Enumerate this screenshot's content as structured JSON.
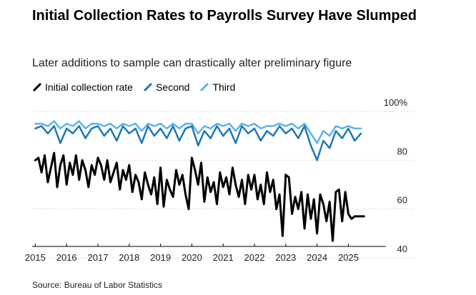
{
  "chart_data": {
    "type": "line",
    "title": "Initial Collection Rates to Payrolls Survey Have Slumped",
    "subtitle": "Later additions to sample can drastically alter preliminary figure",
    "source": "Source: Bureau of Labor Statistics",
    "xlabel": "",
    "ylabel": "",
    "xlim": [
      2014.9,
      2026.2
    ],
    "ylim": [
      40,
      100
    ],
    "x_ticks": [
      2015,
      2016,
      2017,
      2018,
      2019,
      2020,
      2021,
      2022,
      2023,
      2024,
      2025
    ],
    "x_tick_labels": [
      "2015",
      "2016",
      "2017",
      "2018",
      "2019",
      "2020",
      "2021",
      "2022",
      "2023",
      "2024",
      "2025"
    ],
    "y_ticks": [
      40,
      60,
      80,
      100
    ],
    "y_tick_labels": [
      "40",
      "60",
      "80",
      "100%"
    ],
    "grid": "horizontal dotted",
    "legend_position": "top-left",
    "colors": {
      "initial": "#000000",
      "second": "#1f77b4",
      "third": "#5ab4ec",
      "grid": "#bbbbbb",
      "axis": "#000000"
    },
    "series": [
      {
        "name": "Initial collection rate",
        "key": "initial",
        "x": [
          2015.0,
          2015.1,
          2015.2,
          2015.3,
          2015.4,
          2015.5,
          2015.6,
          2015.7,
          2015.8,
          2015.9,
          2016.0,
          2016.1,
          2016.2,
          2016.3,
          2016.4,
          2016.5,
          2016.6,
          2016.7,
          2016.8,
          2016.9,
          2017.0,
          2017.1,
          2017.2,
          2017.3,
          2017.4,
          2017.5,
          2017.6,
          2017.7,
          2017.8,
          2017.9,
          2018.0,
          2018.1,
          2018.2,
          2018.3,
          2018.4,
          2018.5,
          2018.6,
          2018.7,
          2018.8,
          2018.9,
          2019.0,
          2019.1,
          2019.2,
          2019.3,
          2019.4,
          2019.5,
          2019.6,
          2019.7,
          2019.8,
          2019.9,
          2020.0,
          2020.1,
          2020.2,
          2020.3,
          2020.4,
          2020.5,
          2020.6,
          2020.7,
          2020.8,
          2020.9,
          2021.0,
          2021.1,
          2021.2,
          2021.3,
          2021.4,
          2021.5,
          2021.6,
          2021.7,
          2021.8,
          2021.9,
          2022.0,
          2022.1,
          2022.2,
          2022.3,
          2022.4,
          2022.5,
          2022.6,
          2022.7,
          2022.8,
          2022.9,
          2023.0,
          2023.1,
          2023.2,
          2023.3,
          2023.4,
          2023.5,
          2023.6,
          2023.7,
          2023.8,
          2023.9,
          2024.0,
          2024.1,
          2024.2,
          2024.3,
          2024.4,
          2024.5,
          2024.6,
          2024.7,
          2024.8,
          2024.9,
          2025.0,
          2025.1,
          2025.2,
          2025.3,
          2025.4,
          2025.5
        ],
        "values": [
          80,
          81,
          75,
          82,
          71,
          77,
          83,
          69,
          78,
          82,
          70,
          79,
          74,
          82,
          72,
          80,
          76,
          69,
          78,
          74,
          81,
          78,
          72,
          80,
          71,
          75,
          79,
          68,
          76,
          72,
          78,
          67,
          74,
          71,
          64,
          75,
          70,
          66,
          73,
          62,
          77,
          61,
          72,
          68,
          65,
          76,
          70,
          74,
          66,
          60,
          81,
          76,
          70,
          79,
          63,
          73,
          67,
          71,
          62,
          75,
          69,
          73,
          66,
          77,
          70,
          65,
          72,
          62,
          74,
          68,
          74,
          64,
          70,
          62,
          75,
          67,
          72,
          60,
          66,
          49,
          74,
          73,
          58,
          65,
          60,
          67,
          52,
          66,
          56,
          64,
          50,
          66,
          62,
          55,
          63,
          47,
          67,
          68,
          55,
          67,
          58,
          56,
          57,
          57,
          57,
          57
        ],
        "line_width": 3
      },
      {
        "name": "Second",
        "key": "second",
        "x": [
          2015.0,
          2015.2,
          2015.4,
          2015.6,
          2015.8,
          2016.0,
          2016.2,
          2016.4,
          2016.6,
          2016.8,
          2017.0,
          2017.2,
          2017.4,
          2017.6,
          2017.8,
          2018.0,
          2018.2,
          2018.4,
          2018.6,
          2018.8,
          2019.0,
          2019.2,
          2019.4,
          2019.6,
          2019.8,
          2020.0,
          2020.2,
          2020.4,
          2020.6,
          2020.8,
          2021.0,
          2021.2,
          2021.4,
          2021.6,
          2021.8,
          2022.0,
          2022.2,
          2022.4,
          2022.6,
          2022.8,
          2023.0,
          2023.2,
          2023.4,
          2023.6,
          2023.8,
          2024.0,
          2024.2,
          2024.4,
          2024.6,
          2024.8,
          2025.0,
          2025.2,
          2025.4
        ],
        "values": [
          93,
          94,
          91,
          94,
          87,
          93,
          91,
          94,
          89,
          93,
          94,
          90,
          93,
          88,
          94,
          91,
          93,
          87,
          94,
          90,
          93,
          89,
          94,
          88,
          93,
          94,
          86,
          92,
          89,
          94,
          90,
          93,
          87,
          94,
          91,
          93,
          88,
          92,
          90,
          94,
          91,
          93,
          89,
          94,
          86,
          80,
          88,
          85,
          92,
          89,
          93,
          88,
          91
        ],
        "line_width": 2.5
      },
      {
        "name": "Third",
        "key": "third",
        "x": [
          2015.0,
          2015.2,
          2015.4,
          2015.6,
          2015.8,
          2016.0,
          2016.2,
          2016.4,
          2016.6,
          2016.8,
          2017.0,
          2017.2,
          2017.4,
          2017.6,
          2017.8,
          2018.0,
          2018.2,
          2018.4,
          2018.6,
          2018.8,
          2019.0,
          2019.2,
          2019.4,
          2019.6,
          2019.8,
          2020.0,
          2020.2,
          2020.4,
          2020.6,
          2020.8,
          2021.0,
          2021.2,
          2021.4,
          2021.6,
          2021.8,
          2022.0,
          2022.2,
          2022.4,
          2022.6,
          2022.8,
          2023.0,
          2023.2,
          2023.4,
          2023.6,
          2023.8,
          2024.0,
          2024.2,
          2024.4,
          2024.6,
          2024.8,
          2025.0,
          2025.2,
          2025.4
        ],
        "values": [
          95,
          95,
          94,
          96,
          93,
          95,
          94,
          96,
          93,
          95,
          95,
          94,
          95,
          93,
          95,
          94,
          95,
          92,
          95,
          94,
          95,
          93,
          95,
          93,
          95,
          95,
          91,
          94,
          93,
          95,
          94,
          95,
          92,
          95,
          94,
          95,
          93,
          94,
          94,
          95,
          94,
          95,
          93,
          95,
          91,
          87,
          92,
          90,
          94,
          93,
          94,
          93,
          93
        ],
        "line_width": 2.5
      }
    ]
  }
}
